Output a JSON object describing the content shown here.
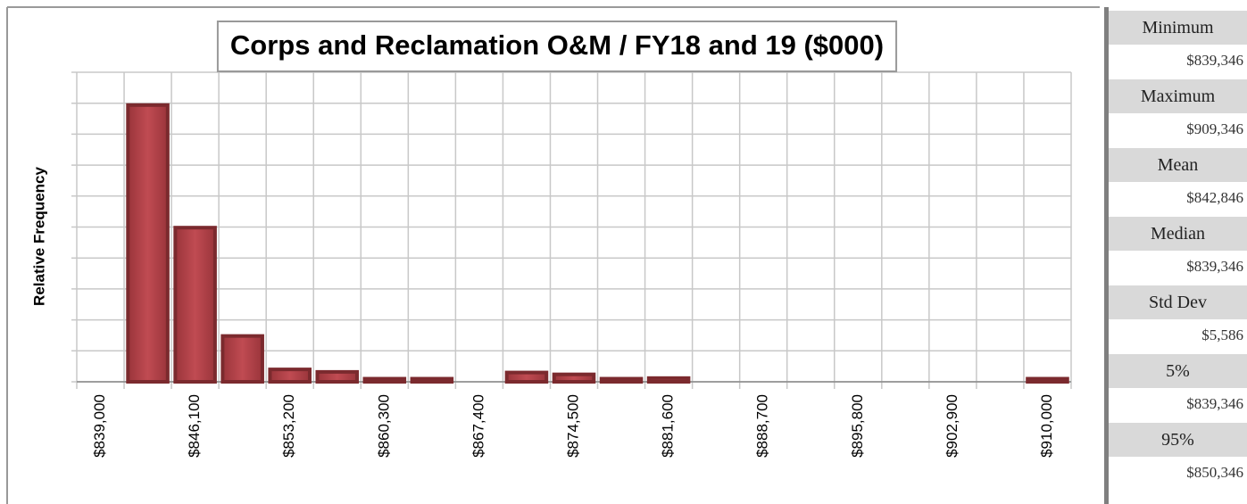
{
  "chart_data": {
    "type": "bar",
    "title": "Corps and Reclamation O&M / FY18 and 19 ($000)",
    "ylabel": "Relative Frequency",
    "categories": [
      "$839,000",
      null,
      "$846,100",
      null,
      "$853,200",
      null,
      "$860,300",
      null,
      "$867,400",
      null,
      "$874,500",
      null,
      "$881,600",
      null,
      "$888,700",
      null,
      "$895,800",
      null,
      "$902,900",
      null,
      "$910,000"
    ],
    "values": [
      0,
      0.447,
      0.249,
      0.074,
      0.02,
      0.016,
      0.005,
      0.005,
      0,
      0.015,
      0.012,
      0.005,
      0.006,
      0,
      0,
      0,
      0,
      0,
      0,
      0,
      0.005
    ],
    "color": "#7b2a2e",
    "ylim": [
      0,
      0.5
    ],
    "yticks": [
      0,
      0.05,
      0.1,
      0.15,
      0.2,
      0.25,
      0.3,
      0.35,
      0.4,
      0.45,
      0.5
    ],
    "grid": true
  },
  "stats": [
    {
      "label": "Minimum",
      "value": "$839,346"
    },
    {
      "label": "Maximum",
      "value": "$909,346"
    },
    {
      "label": "Mean",
      "value": "$842,846"
    },
    {
      "label": "Median",
      "value": "$839,346"
    },
    {
      "label": "Std Dev",
      "value": "$5,586"
    },
    {
      "label": "5%",
      "value": "$839,346"
    },
    {
      "label": "95%",
      "value": "$850,346"
    }
  ]
}
